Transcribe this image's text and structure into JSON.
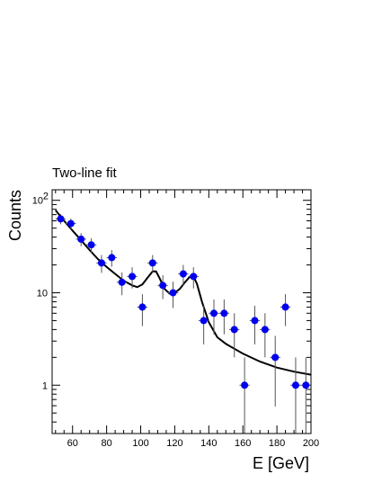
{
  "chart_data": {
    "type": "scatter",
    "title": "Two-line fit",
    "xlabel": "E [GeV]",
    "ylabel": "Counts",
    "xlim": [
      48,
      200
    ],
    "ylim": [
      0.3,
      130
    ],
    "yscale": "log",
    "grid": false,
    "legend": "none",
    "x_ticks": [
      {
        "value": 60,
        "label": "60"
      },
      {
        "value": 80,
        "label": "80"
      },
      {
        "value": 100,
        "label": "100"
      },
      {
        "value": 120,
        "label": "120"
      },
      {
        "value": 140,
        "label": "140"
      },
      {
        "value": 160,
        "label": "160"
      },
      {
        "value": 180,
        "label": "180"
      },
      {
        "value": 200,
        "label": "200"
      }
    ],
    "y_ticks": [
      {
        "value": 1,
        "label": "1"
      },
      {
        "value": 10,
        "label": "10"
      },
      {
        "value": 100,
        "label": "10",
        "exponent": "2"
      }
    ],
    "series": [
      {
        "kind": "points_with_errors",
        "color": "#0000ee",
        "points": [
          {
            "x": 53,
            "y": 63
          },
          {
            "x": 59,
            "y": 56
          },
          {
            "x": 65,
            "y": 38
          },
          {
            "x": 71,
            "y": 33
          },
          {
            "x": 77,
            "y": 21
          },
          {
            "x": 83,
            "y": 24
          },
          {
            "x": 89,
            "y": 13
          },
          {
            "x": 95,
            "y": 15
          },
          {
            "x": 101,
            "y": 7
          },
          {
            "x": 107,
            "y": 21
          },
          {
            "x": 113,
            "y": 12
          },
          {
            "x": 119,
            "y": 10
          },
          {
            "x": 125,
            "y": 16
          },
          {
            "x": 131,
            "y": 15
          },
          {
            "x": 137,
            "y": 5
          },
          {
            "x": 143,
            "y": 6
          },
          {
            "x": 149,
            "y": 6
          },
          {
            "x": 155,
            "y": 4
          },
          {
            "x": 161,
            "y": 1
          },
          {
            "x": 167,
            "y": 5
          },
          {
            "x": 173,
            "y": 4
          },
          {
            "x": 179,
            "y": 2
          },
          {
            "x": 185,
            "y": 7
          },
          {
            "x": 191,
            "y": 1
          },
          {
            "x": 197,
            "y": 1
          }
        ]
      },
      {
        "kind": "fit_curve",
        "color": "#000000",
        "points": [
          {
            "x": 50,
            "y": 78
          },
          {
            "x": 55,
            "y": 60
          },
          {
            "x": 60,
            "y": 47
          },
          {
            "x": 65,
            "y": 37
          },
          {
            "x": 70,
            "y": 29
          },
          {
            "x": 75,
            "y": 23
          },
          {
            "x": 80,
            "y": 19
          },
          {
            "x": 85,
            "y": 16
          },
          {
            "x": 90,
            "y": 13.5
          },
          {
            "x": 95,
            "y": 12
          },
          {
            "x": 98,
            "y": 11.5
          },
          {
            "x": 101,
            "y": 12.3
          },
          {
            "x": 104,
            "y": 14.5
          },
          {
            "x": 107,
            "y": 17
          },
          {
            "x": 109,
            "y": 17
          },
          {
            "x": 111,
            "y": 14.5
          },
          {
            "x": 114,
            "y": 11
          },
          {
            "x": 117,
            "y": 9.8
          },
          {
            "x": 120,
            "y": 10
          },
          {
            "x": 123,
            "y": 11
          },
          {
            "x": 126,
            "y": 13
          },
          {
            "x": 129,
            "y": 15
          },
          {
            "x": 131,
            "y": 15
          },
          {
            "x": 133,
            "y": 12.5
          },
          {
            "x": 136,
            "y": 8
          },
          {
            "x": 140,
            "y": 4.8
          },
          {
            "x": 145,
            "y": 3.3
          },
          {
            "x": 150,
            "y": 2.8
          },
          {
            "x": 160,
            "y": 2.2
          },
          {
            "x": 170,
            "y": 1.8
          },
          {
            "x": 180,
            "y": 1.55
          },
          {
            "x": 190,
            "y": 1.4
          },
          {
            "x": 200,
            "y": 1.3
          }
        ]
      }
    ]
  }
}
